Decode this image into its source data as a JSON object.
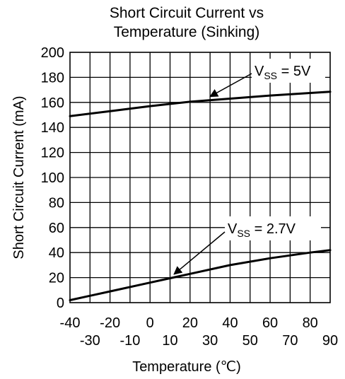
{
  "chart_data": {
    "type": "line",
    "title_line1": "Short Circuit Current vs",
    "title_line2": "Temperature (Sinking)",
    "xlabel": "Temperature (℃)",
    "ylabel": "Short Circuit Current (mA)",
    "xlim": [
      -40,
      90
    ],
    "ylim": [
      0,
      200
    ],
    "x_ticks_row1": [
      "-40",
      "-20",
      "0",
      "20",
      "40",
      "60",
      "80"
    ],
    "x_ticks_row2": [
      "-30",
      "-10",
      "10",
      "30",
      "50",
      "70",
      "90"
    ],
    "y_ticks": [
      "0",
      "20",
      "40",
      "60",
      "80",
      "100",
      "120",
      "140",
      "160",
      "180",
      "200"
    ],
    "grid": true,
    "series": [
      {
        "name": "VSS = 5V",
        "label_main": "V",
        "label_sub": "SS",
        "label_value": " = 5V",
        "x": [
          -40,
          -20,
          0,
          20,
          40,
          60,
          80,
          90
        ],
        "values": [
          149,
          153,
          157,
          160.5,
          163,
          165.5,
          167.5,
          168.5
        ]
      },
      {
        "name": "VSS = 2.7V",
        "label_main": "V",
        "label_sub": "SS",
        "label_value": " = 2.7V",
        "x": [
          -40,
          -20,
          0,
          10,
          20,
          40,
          60,
          80,
          90
        ],
        "values": [
          2,
          9,
          16,
          19.5,
          23,
          30,
          35.5,
          40,
          42
        ]
      }
    ]
  }
}
